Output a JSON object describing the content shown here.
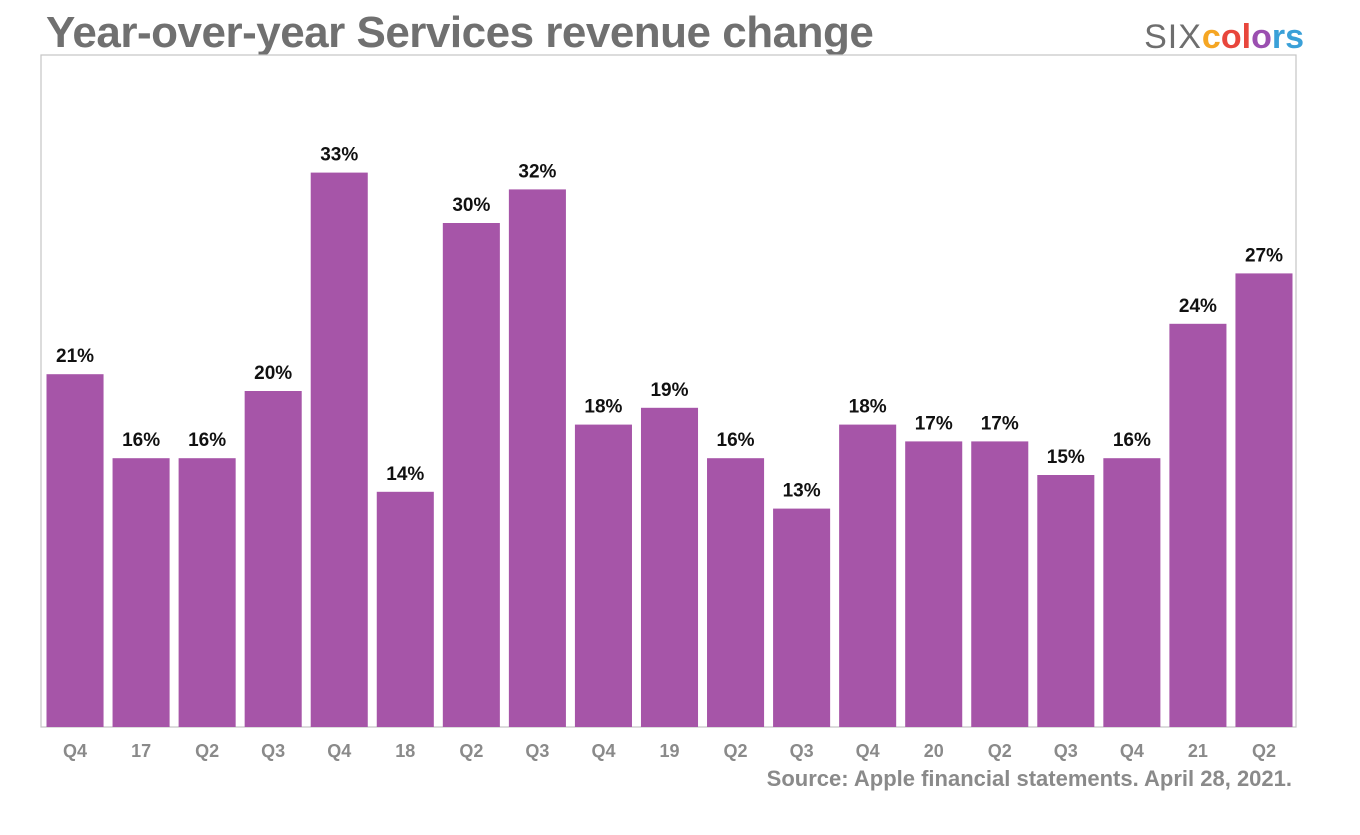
{
  "header": {
    "title": "Year-over-year Services revenue change"
  },
  "logo": {
    "six": "SIX",
    "letters": [
      "c",
      "o",
      "l",
      "o",
      "r",
      "s"
    ],
    "colors": [
      "#f5a623",
      "#e8463c",
      "#e8463c",
      "#9b4fb0",
      "#3aa0d8",
      "#3aa0d8"
    ]
  },
  "footer": {
    "source": "Source: Apple financial statements. April 28, 2021."
  },
  "chart_data": {
    "type": "bar",
    "title": "Year-over-year Services revenue change",
    "xlabel": "",
    "ylabel": "",
    "ylim": [
      0,
      40
    ],
    "bar_color": "#a655a8",
    "categories": [
      "Q4",
      "17",
      "Q2",
      "Q3",
      "Q4",
      "18",
      "Q2",
      "Q3",
      "Q4",
      "19",
      "Q2",
      "Q3",
      "Q4",
      "20",
      "Q2",
      "Q3",
      "Q4",
      "21",
      "Q2"
    ],
    "values": [
      21,
      16,
      16,
      20,
      33,
      14,
      30,
      32,
      18,
      19,
      16,
      13,
      18,
      17,
      17,
      15,
      16,
      24,
      27
    ],
    "value_labels": [
      "21%",
      "16%",
      "16%",
      "20%",
      "33%",
      "14%",
      "30%",
      "32%",
      "18%",
      "19%",
      "16%",
      "13%",
      "18%",
      "17%",
      "17%",
      "15%",
      "16%",
      "24%",
      "27%"
    ]
  }
}
